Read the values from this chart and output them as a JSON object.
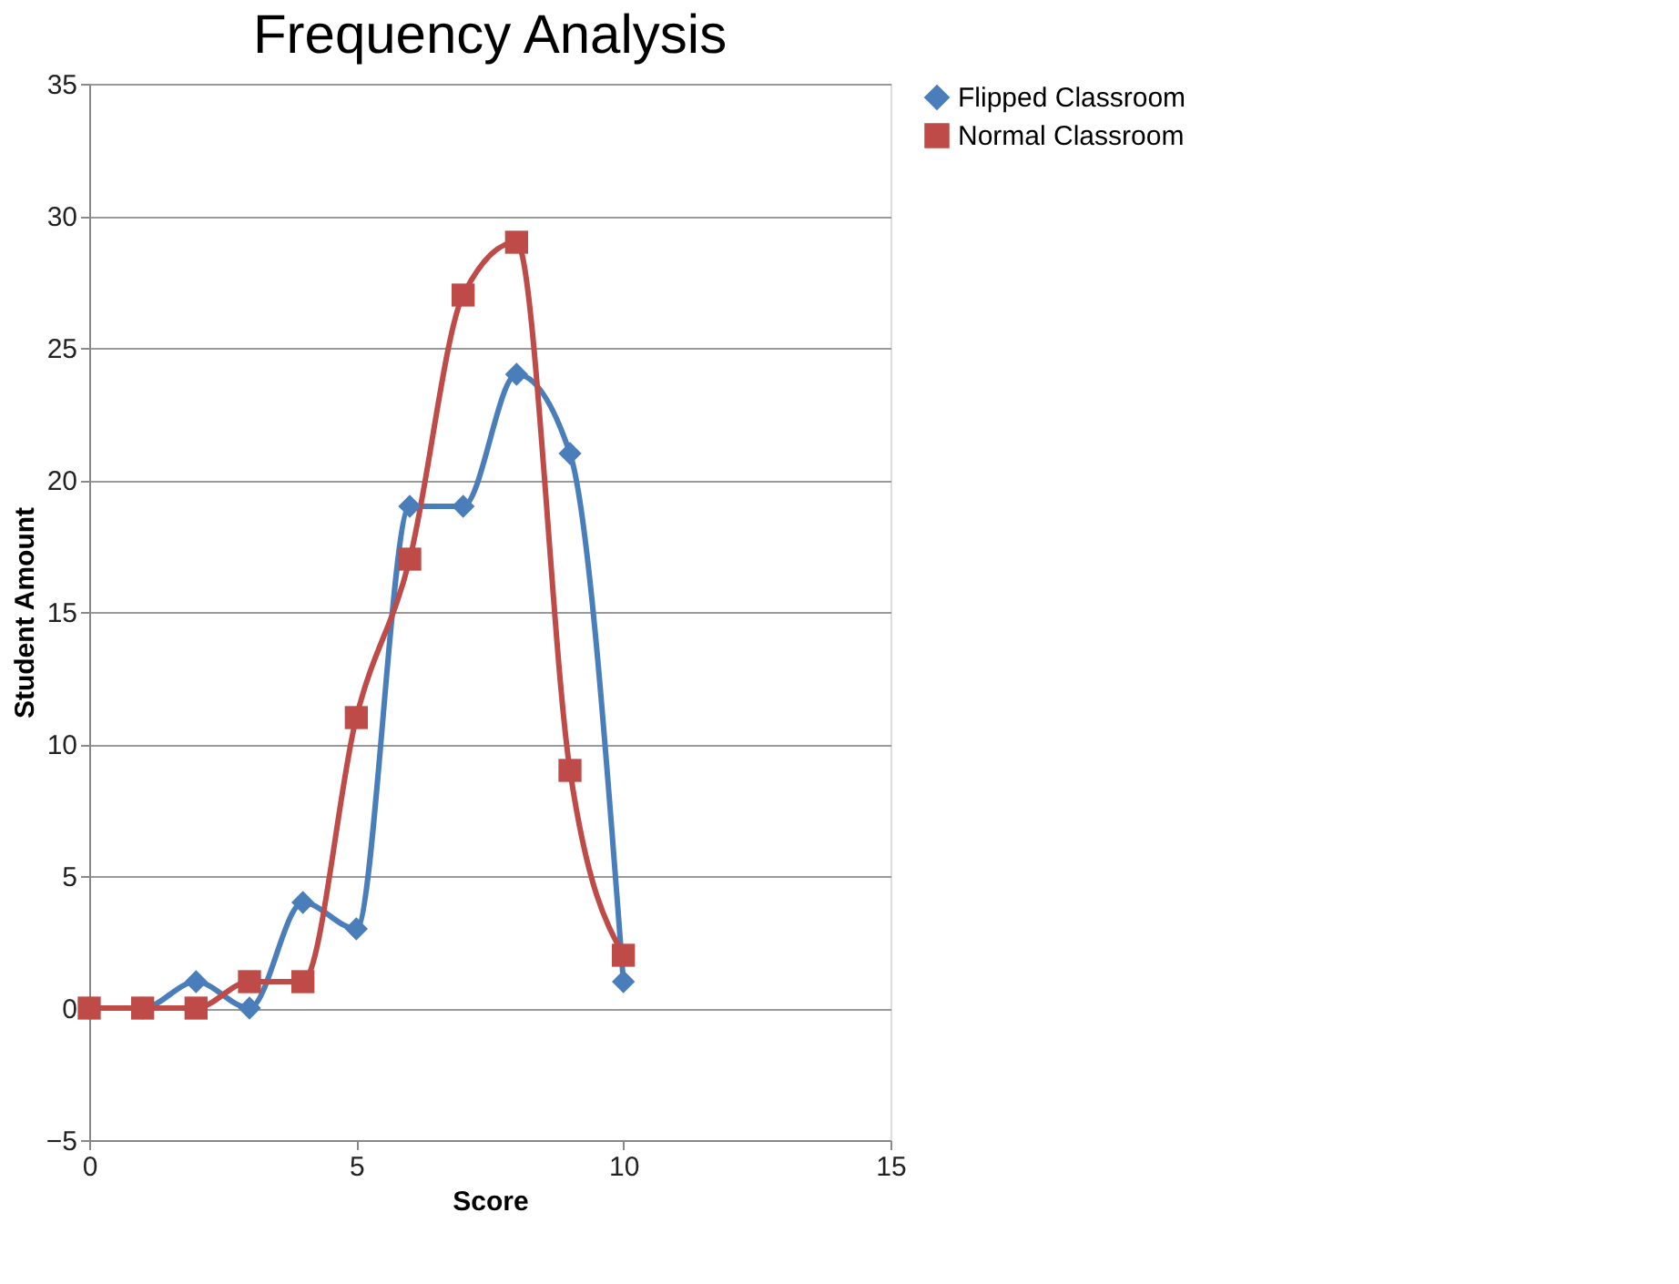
{
  "chart_data": {
    "type": "line",
    "title": "Frequency Analysis",
    "xlabel": "Score",
    "ylabel": "Student Amount",
    "x": [
      0,
      1,
      2,
      3,
      4,
      5,
      6,
      7,
      8,
      9,
      10
    ],
    "series": [
      {
        "name": "Flipped Classroom",
        "color": "#4a7ebb",
        "marker": "diamond",
        "values": [
          0,
          0,
          1,
          0,
          4,
          3,
          19,
          19,
          24,
          21,
          1
        ]
      },
      {
        "name": "Normal Classroom",
        "color": "#be4b48",
        "marker": "square",
        "values": [
          0,
          0,
          0,
          1,
          1,
          11,
          17,
          27,
          29,
          9,
          2
        ]
      }
    ],
    "xlim": [
      0,
      15
    ],
    "xticks": [
      0,
      5,
      10,
      15
    ],
    "ylim": [
      -5,
      35
    ],
    "yticks": [
      -5,
      0,
      5,
      10,
      15,
      20,
      25,
      30,
      35
    ],
    "grid": "y",
    "legend": "right",
    "line_style": "solid"
  }
}
